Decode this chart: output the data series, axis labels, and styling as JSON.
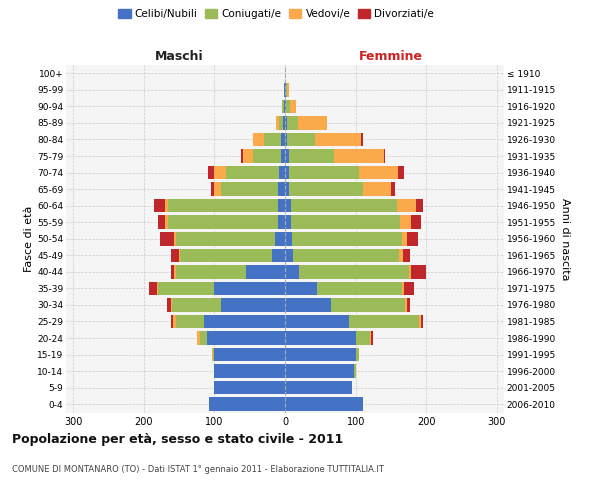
{
  "age_groups": [
    "0-4",
    "5-9",
    "10-14",
    "15-19",
    "20-24",
    "25-29",
    "30-34",
    "35-39",
    "40-44",
    "45-49",
    "50-54",
    "55-59",
    "60-64",
    "65-69",
    "70-74",
    "75-79",
    "80-84",
    "85-89",
    "90-94",
    "95-99",
    "100+"
  ],
  "birth_years": [
    "2006-2010",
    "2001-2005",
    "1996-2000",
    "1991-1995",
    "1986-1990",
    "1981-1985",
    "1976-1980",
    "1971-1975",
    "1966-1970",
    "1961-1965",
    "1956-1960",
    "1951-1955",
    "1946-1950",
    "1941-1945",
    "1936-1940",
    "1931-1935",
    "1926-1930",
    "1921-1925",
    "1916-1920",
    "1911-1915",
    "≤ 1910"
  ],
  "colors": {
    "celibi": "#4472C4",
    "coniugati": "#9BBB59",
    "vedovi": "#FAA94B",
    "divorziati": "#C0272D"
  },
  "maschi": {
    "celibi": [
      108,
      100,
      100,
      100,
      110,
      115,
      90,
      100,
      55,
      18,
      14,
      10,
      10,
      10,
      8,
      5,
      5,
      3,
      2,
      1,
      0
    ],
    "coniugati": [
      0,
      0,
      0,
      2,
      10,
      40,
      70,
      80,
      100,
      130,
      140,
      155,
      155,
      80,
      75,
      40,
      25,
      5,
      2,
      0,
      0
    ],
    "vedovi": [
      0,
      0,
      0,
      2,
      4,
      4,
      2,
      1,
      2,
      2,
      3,
      5,
      5,
      10,
      18,
      15,
      15,
      5,
      0,
      0,
      0
    ],
    "divorziati": [
      0,
      0,
      0,
      0,
      0,
      2,
      5,
      12,
      5,
      12,
      20,
      10,
      15,
      5,
      8,
      2,
      0,
      0,
      0,
      0,
      0
    ]
  },
  "femmine": {
    "celibi": [
      110,
      95,
      98,
      100,
      100,
      90,
      65,
      45,
      20,
      12,
      10,
      8,
      8,
      5,
      5,
      5,
      3,
      3,
      2,
      1,
      0
    ],
    "coniugati": [
      0,
      0,
      2,
      5,
      20,
      100,
      105,
      120,
      155,
      150,
      155,
      155,
      150,
      105,
      100,
      65,
      40,
      15,
      5,
      2,
      0
    ],
    "vedovi": [
      0,
      0,
      0,
      0,
      2,
      2,
      2,
      3,
      3,
      5,
      8,
      15,
      28,
      40,
      55,
      70,
      65,
      42,
      8,
      2,
      0
    ],
    "divorziati": [
      0,
      0,
      0,
      0,
      2,
      3,
      5,
      15,
      22,
      10,
      15,
      15,
      10,
      5,
      8,
      2,
      2,
      0,
      0,
      0,
      0
    ]
  },
  "title": "Popolazione per età, sesso e stato civile - 2011",
  "subtitle": "COMUNE DI MONTANARO (TO) - Dati ISTAT 1° gennaio 2011 - Elaborazione TUTTITALIA.IT",
  "label_maschi": "Maschi",
  "label_femmine": "Femmine",
  "ylabel_left": "Fasce di età",
  "ylabel_right": "Anni di nascita",
  "xlim": 310,
  "legend_labels": [
    "Celibi/Nubili",
    "Coniugati/e",
    "Vedovi/e",
    "Divorziati/e"
  ],
  "bg_color": "#FFFFFF",
  "plot_bg": "#F5F5F5",
  "grid_color": "#CCCCCC"
}
